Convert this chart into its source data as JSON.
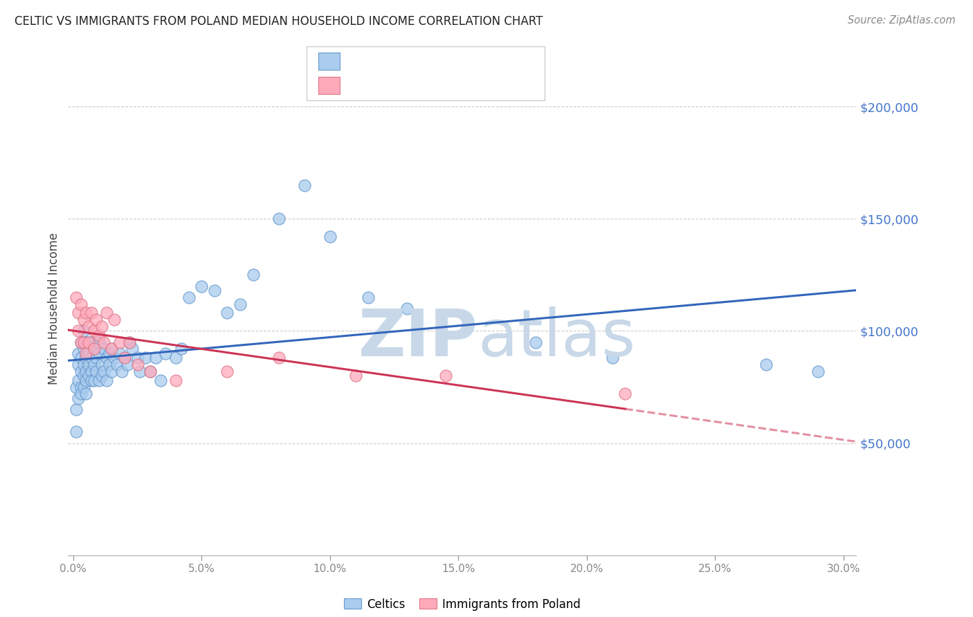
{
  "title": "CELTIC VS IMMIGRANTS FROM POLAND MEDIAN HOUSEHOLD INCOME CORRELATION CHART",
  "source": "Source: ZipAtlas.com",
  "ylabel": "Median Household Income",
  "xlabel_ticks": [
    "0.0%",
    "5.0%",
    "10.0%",
    "15.0%",
    "20.0%",
    "25.0%",
    "30.0%"
  ],
  "xlabel_tick_vals": [
    0.0,
    0.05,
    0.1,
    0.15,
    0.2,
    0.25,
    0.3
  ],
  "ylim": [
    0,
    220000
  ],
  "xlim": [
    -0.002,
    0.305
  ],
  "ytick_vals": [
    50000,
    100000,
    150000,
    200000
  ],
  "ytick_labels": [
    "$50,000",
    "$100,000",
    "$150,000",
    "$200,000"
  ],
  "ytick_color": "#4477cc",
  "grid_color": "#cccccc",
  "celtics_color": "#aaccee",
  "celtics_edge_color": "#6699cc",
  "poland_color": "#ffaabb",
  "poland_edge_color": "#dd7788",
  "celtics_line_color": "#3366bb",
  "poland_line_color": "#cc3355",
  "legend_text_color": "#3366bb",
  "watermark_color": "#c8d8e8",
  "celtics_x": [
    0.001,
    0.001,
    0.001,
    0.002,
    0.002,
    0.002,
    0.002,
    0.003,
    0.003,
    0.003,
    0.003,
    0.003,
    0.004,
    0.004,
    0.004,
    0.004,
    0.004,
    0.005,
    0.005,
    0.005,
    0.005,
    0.005,
    0.006,
    0.006,
    0.006,
    0.006,
    0.007,
    0.007,
    0.007,
    0.007,
    0.008,
    0.008,
    0.008,
    0.009,
    0.009,
    0.01,
    0.01,
    0.01,
    0.011,
    0.011,
    0.012,
    0.012,
    0.013,
    0.013,
    0.014,
    0.014,
    0.015,
    0.015,
    0.016,
    0.017,
    0.018,
    0.019,
    0.02,
    0.021,
    0.022,
    0.023,
    0.025,
    0.026,
    0.028,
    0.03,
    0.032,
    0.034,
    0.036,
    0.04,
    0.042,
    0.045,
    0.05,
    0.055,
    0.06,
    0.065,
    0.07,
    0.08,
    0.09,
    0.1,
    0.115,
    0.13,
    0.18,
    0.21,
    0.27,
    0.29
  ],
  "celtics_y": [
    75000,
    65000,
    55000,
    85000,
    78000,
    70000,
    90000,
    82000,
    75000,
    95000,
    88000,
    72000,
    80000,
    92000,
    85000,
    100000,
    75000,
    88000,
    95000,
    82000,
    78000,
    72000,
    90000,
    85000,
    80000,
    95000,
    88000,
    82000,
    95000,
    78000,
    85000,
    92000,
    78000,
    88000,
    82000,
    90000,
    95000,
    78000,
    85000,
    80000,
    92000,
    82000,
    88000,
    78000,
    85000,
    90000,
    82000,
    92000,
    88000,
    85000,
    90000,
    82000,
    88000,
    85000,
    95000,
    92000,
    88000,
    82000,
    88000,
    82000,
    88000,
    78000,
    90000,
    88000,
    92000,
    115000,
    120000,
    118000,
    108000,
    112000,
    125000,
    150000,
    165000,
    142000,
    115000,
    110000,
    95000,
    88000,
    85000,
    82000
  ],
  "poland_x": [
    0.001,
    0.002,
    0.002,
    0.003,
    0.003,
    0.004,
    0.004,
    0.005,
    0.005,
    0.006,
    0.006,
    0.007,
    0.008,
    0.008,
    0.009,
    0.01,
    0.011,
    0.012,
    0.013,
    0.015,
    0.016,
    0.018,
    0.02,
    0.022,
    0.025,
    0.03,
    0.04,
    0.06,
    0.08,
    0.11,
    0.145,
    0.215
  ],
  "poland_y": [
    115000,
    100000,
    108000,
    95000,
    112000,
    105000,
    95000,
    108000,
    90000,
    102000,
    95000,
    108000,
    100000,
    92000,
    105000,
    98000,
    102000,
    95000,
    108000,
    92000,
    105000,
    95000,
    88000,
    95000,
    85000,
    82000,
    78000,
    82000,
    88000,
    80000,
    80000,
    72000
  ]
}
